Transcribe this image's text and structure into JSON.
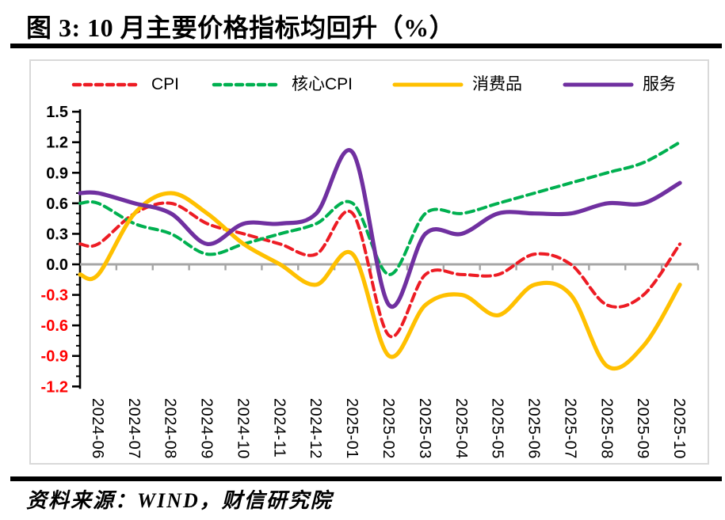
{
  "title": "图 3:  10 月主要价格指标均回升（%）",
  "source": "资料来源：WIND，财信研究院",
  "colors": {
    "cpi": "#ed1c24",
    "core_cpi": "#00b050",
    "consumer_goods": "#ffc000",
    "services": "#7030a0",
    "zero_axis": "#a6a6a6",
    "axis": "#000000",
    "negative_tick_label": "#ff0000",
    "frame": "#d9d9d9"
  },
  "chart_data": {
    "type": "line",
    "title": "10 月主要价格指标均回升（%）",
    "unit": "%",
    "x": [
      "2024-06",
      "2024-07",
      "2024-08",
      "2024-09",
      "2024-10",
      "2024-11",
      "2024-12",
      "2025-01",
      "2025-02",
      "2025-03",
      "2025-04",
      "2025-05",
      "2025-06",
      "2025-07",
      "2025-08",
      "2025-09",
      "2025-10"
    ],
    "series": [
      {
        "name": "CPI",
        "color": "#ed1c24",
        "style": "dashed",
        "values": [
          0.2,
          0.5,
          0.6,
          0.4,
          0.3,
          0.2,
          0.1,
          0.5,
          -0.7,
          -0.1,
          -0.1,
          -0.1,
          0.1,
          0.0,
          -0.4,
          -0.3,
          0.2
        ]
      },
      {
        "name": "核心CPI",
        "color": "#00b050",
        "style": "dashed",
        "values": [
          0.6,
          0.4,
          0.3,
          0.1,
          0.2,
          0.3,
          0.4,
          0.6,
          -0.1,
          0.5,
          0.5,
          0.6,
          0.7,
          0.8,
          0.9,
          1.0,
          1.2
        ]
      },
      {
        "name": "消费品",
        "color": "#ffc000",
        "style": "solid",
        "values": [
          -0.1,
          0.5,
          0.7,
          0.5,
          0.2,
          0.0,
          -0.2,
          0.1,
          -0.9,
          -0.4,
          -0.3,
          -0.5,
          -0.2,
          -0.3,
          -1.0,
          -0.8,
          -0.2
        ]
      },
      {
        "name": "服务",
        "color": "#7030a0",
        "style": "solid",
        "values": [
          0.7,
          0.6,
          0.5,
          0.2,
          0.4,
          0.4,
          0.5,
          1.1,
          -0.4,
          0.3,
          0.3,
          0.5,
          0.5,
          0.5,
          0.6,
          0.6,
          0.8
        ]
      }
    ],
    "ylim": [
      -1.2,
      1.5
    ],
    "ytick_step": 0.3,
    "yminor_step": 0.1,
    "ytick_labels": [
      "1.5",
      "1.2",
      "0.9",
      "0.6",
      "0.3",
      "0.0",
      "-0.3",
      "-0.6",
      "-0.9",
      "-1.2"
    ],
    "grid": false,
    "legend_position": "top",
    "smooth": true
  }
}
